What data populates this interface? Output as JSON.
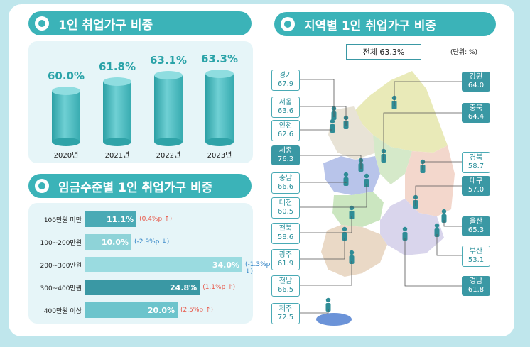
{
  "left": {
    "title1": "1인 취업가구 비중",
    "title2": "임금수준별 1인 취업가구 비중"
  },
  "right": {
    "title": "지역별 1인 취업가구 비중",
    "total": "전체 63.3%",
    "unit": "(단위: %)"
  },
  "chart_data": [
    {
      "type": "bar",
      "categories": [
        "2020년",
        "2021년",
        "2022년",
        "2023년"
      ],
      "values": [
        60.0,
        61.8,
        63.1,
        63.3
      ],
      "value_labels": [
        "60.0%",
        "61.8%",
        "63.1%",
        "63.3%"
      ]
    },
    {
      "type": "bar",
      "orientation": "horizontal",
      "categories": [
        "100만원 미만",
        "100~200만원",
        "200~300만원",
        "300~400만원",
        "400만원 이상"
      ],
      "values": [
        11.1,
        10.0,
        34.0,
        24.8,
        20.0
      ],
      "value_labels": [
        "11.1%",
        "10.0%",
        "34.0%",
        "24.8%",
        "20.0%"
      ],
      "changes": [
        "(0.4%p",
        "(-2.9%p",
        "(-1.3%p",
        "(1.1%p",
        "(2.5%p"
      ],
      "directions": [
        "up",
        "down",
        "down",
        "up",
        "up"
      ],
      "colors": [
        "#4aaab5",
        "#8ed3d8",
        "#9adbe0",
        "#3a98a4",
        "#6cc4cc"
      ]
    },
    {
      "type": "table",
      "regions": [
        {
          "name": "경기",
          "value": "67.9",
          "style": "light"
        },
        {
          "name": "서울",
          "value": "63.6",
          "style": "light"
        },
        {
          "name": "인천",
          "value": "62.6",
          "style": "light"
        },
        {
          "name": "세종",
          "value": "76.3",
          "style": "dark"
        },
        {
          "name": "충남",
          "value": "66.6",
          "style": "light"
        },
        {
          "name": "대전",
          "value": "60.5",
          "style": "light"
        },
        {
          "name": "전북",
          "value": "58.6",
          "style": "light"
        },
        {
          "name": "광주",
          "value": "61.9",
          "style": "light"
        },
        {
          "name": "전남",
          "value": "66.5",
          "style": "light"
        },
        {
          "name": "제주",
          "value": "72.5",
          "style": "light"
        },
        {
          "name": "강원",
          "value": "64.0",
          "style": "dark"
        },
        {
          "name": "충북",
          "value": "64.4",
          "style": "dark"
        },
        {
          "name": "경북",
          "value": "58.7",
          "style": "light"
        },
        {
          "name": "대구",
          "value": "57.0",
          "style": "dark"
        },
        {
          "name": "울산",
          "value": "65.3",
          "style": "dark"
        },
        {
          "name": "부산",
          "value": "53.1",
          "style": "light"
        },
        {
          "name": "경남",
          "value": "61.8",
          "style": "dark"
        }
      ]
    }
  ],
  "colors": {
    "accent": "#3bb3b8",
    "panel": "#e6f5f8",
    "up": "#e8584a",
    "down": "#2a7fc4",
    "background": "#bfe6ec"
  }
}
